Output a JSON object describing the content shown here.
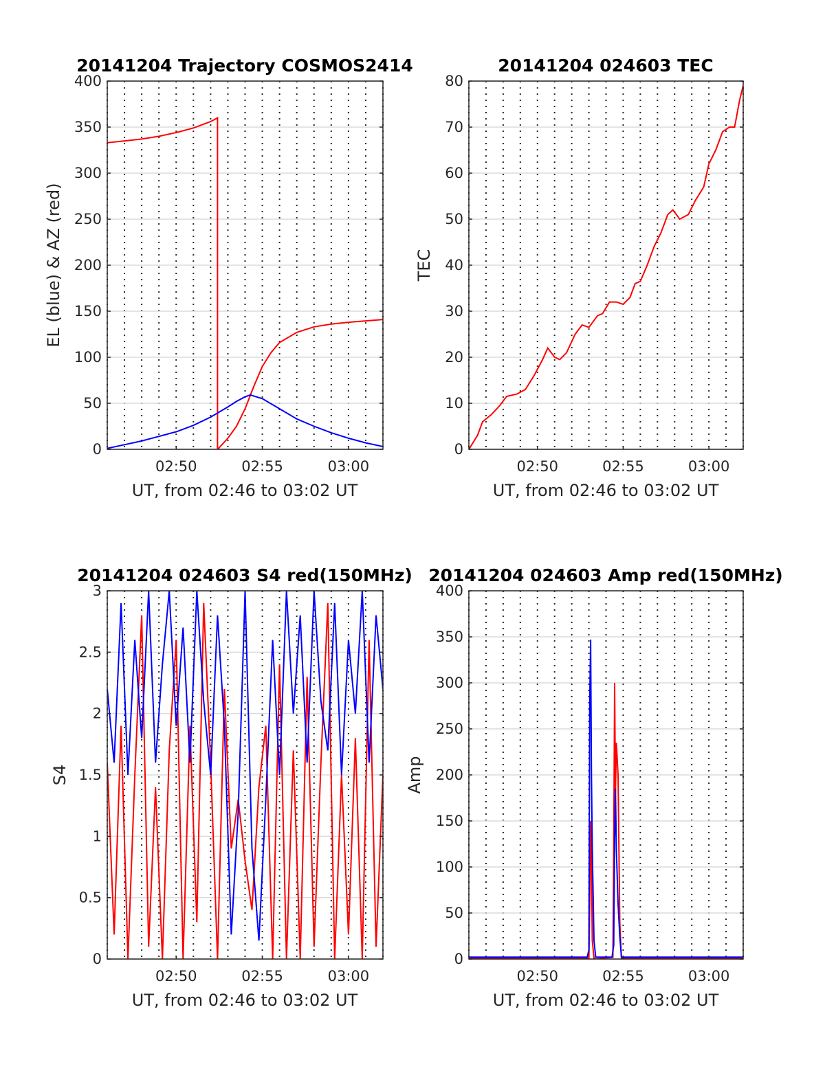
{
  "chart_data": [
    {
      "id": "trajectory",
      "type": "line",
      "title": "20141204 Trajectory COSMOS2414",
      "xlabel": "UT, from 02:46 to 03:02 UT",
      "ylabel": "EL (blue) & AZ (red)",
      "xlim": [
        166,
        182
      ],
      "ylim": [
        0,
        400
      ],
      "xticks": [
        {
          "v": 170,
          "label": "02:50"
        },
        {
          "v": 175,
          "label": "02:55"
        },
        {
          "v": 180,
          "label": "03:00"
        }
      ],
      "yticks": [
        {
          "v": 0,
          "label": "0"
        },
        {
          "v": 50,
          "label": "50"
        },
        {
          "v": 100,
          "label": "100"
        },
        {
          "v": 150,
          "label": "150"
        },
        {
          "v": 200,
          "label": "200"
        },
        {
          "v": 250,
          "label": "250"
        },
        {
          "v": 300,
          "label": "300"
        },
        {
          "v": 350,
          "label": "350"
        },
        {
          "v": 400,
          "label": "400"
        }
      ],
      "grid": true,
      "series": [
        {
          "color": "#ff0000",
          "x": [
            166,
            167,
            168,
            169,
            170,
            171,
            172,
            172.4,
            172.4,
            172.41,
            173,
            173.5,
            174,
            174.5,
            175,
            175.5,
            176,
            177,
            178,
            179,
            180,
            181,
            182
          ],
          "y": [
            333,
            335,
            337,
            340,
            344,
            349,
            356,
            360,
            0,
            0,
            12,
            25,
            44,
            68,
            90,
            105,
            116,
            127,
            133,
            136,
            138,
            139.5,
            141
          ]
        },
        {
          "color": "#0000ff",
          "x": [
            166,
            167,
            168,
            169,
            170,
            171,
            172,
            173,
            173.5,
            174,
            174.3,
            175,
            176,
            177,
            178,
            179,
            180,
            181,
            182
          ],
          "y": [
            1,
            5,
            9,
            14,
            19,
            26,
            35,
            46,
            52,
            57,
            59,
            55,
            44,
            33,
            25,
            18,
            12,
            7,
            3
          ]
        }
      ]
    },
    {
      "id": "tec",
      "type": "line",
      "title": "20141204 024603 TEC",
      "xlabel": "UT, from 02:46 to 03:02 UT",
      "ylabel": "TEC",
      "xlim": [
        166,
        182
      ],
      "ylim": [
        0,
        80
      ],
      "xticks": [
        {
          "v": 170,
          "label": "02:50"
        },
        {
          "v": 175,
          "label": "02:55"
        },
        {
          "v": 180,
          "label": "03:00"
        }
      ],
      "yticks": [
        {
          "v": 0,
          "label": "0"
        },
        {
          "v": 10,
          "label": "10"
        },
        {
          "v": 20,
          "label": "20"
        },
        {
          "v": 30,
          "label": "30"
        },
        {
          "v": 40,
          "label": "40"
        },
        {
          "v": 50,
          "label": "50"
        },
        {
          "v": 60,
          "label": "60"
        },
        {
          "v": 70,
          "label": "70"
        },
        {
          "v": 80,
          "label": "80"
        }
      ],
      "grid": true,
      "series": [
        {
          "color": "#ff0000",
          "x": [
            166,
            166.5,
            166.8,
            167.3,
            167.8,
            168.2,
            168.8,
            169.3,
            169.8,
            170.3,
            170.6,
            171,
            171.3,
            171.7,
            172.2,
            172.6,
            173,
            173.5,
            173.8,
            174.2,
            174.6,
            175,
            175.4,
            175.7,
            176,
            176.4,
            176.8,
            177.2,
            177.6,
            177.9,
            178.3,
            178.8,
            179.2,
            179.7,
            180,
            180.4,
            180.8,
            181.2,
            181.5,
            181.8,
            182
          ],
          "y": [
            0,
            3,
            6,
            7.5,
            9.5,
            11.5,
            12,
            13,
            16,
            19.5,
            22,
            20,
            19.5,
            21,
            25,
            27,
            26.5,
            29,
            29.5,
            32,
            32,
            31.5,
            33,
            36,
            36.5,
            40,
            44,
            47,
            51,
            52,
            50,
            51,
            54,
            57,
            62,
            65,
            69,
            70,
            70,
            76,
            79
          ]
        }
      ]
    },
    {
      "id": "s4",
      "type": "line",
      "title": "20141204 024603 S4 red(150MHz)",
      "xlabel": "UT, from 02:46 to 03:02 UT",
      "ylabel": "S4",
      "xlim": [
        166,
        182
      ],
      "ylim": [
        0,
        3
      ],
      "xticks": [
        {
          "v": 170,
          "label": "02:50"
        },
        {
          "v": 175,
          "label": "02:55"
        },
        {
          "v": 180,
          "label": "03:00"
        }
      ],
      "yticks": [
        {
          "v": 0,
          "label": "0"
        },
        {
          "v": 0.5,
          "label": "0.5"
        },
        {
          "v": 1,
          "label": "1"
        },
        {
          "v": 1.5,
          "label": "1.5"
        },
        {
          "v": 2,
          "label": "2"
        },
        {
          "v": 2.5,
          "label": "2.5"
        },
        {
          "v": 3,
          "label": "3"
        }
      ],
      "grid": true,
      "series": [
        {
          "color": "#ff0000",
          "x": [
            166,
            166.4,
            166.8,
            167.2,
            167.6,
            168,
            168.4,
            168.8,
            169.2,
            169.6,
            170,
            170.4,
            170.8,
            171.2,
            171.6,
            172,
            172.4,
            172.8,
            173.2,
            173.6,
            174,
            174.4,
            174.8,
            175.2,
            175.6,
            176,
            176.4,
            176.8,
            177.2,
            177.6,
            178,
            178.4,
            178.8,
            179.2,
            179.6,
            180,
            180.4,
            180.8,
            181.2,
            181.6,
            182
          ],
          "y": [
            1.6,
            0.2,
            1.9,
            0,
            1.5,
            2.8,
            0.1,
            1.4,
            0,
            1.7,
            2.6,
            0,
            1.9,
            0.3,
            2.9,
            1.6,
            0,
            2.2,
            0.9,
            1.3,
            0.8,
            0.4,
            1.4,
            1.9,
            0,
            2.4,
            0,
            1.7,
            0,
            2.3,
            0.1,
            1.6,
            2.9,
            0,
            1.5,
            0.2,
            1.8,
            0,
            2.6,
            0.1,
            1.5
          ]
        },
        {
          "color": "#0000ff",
          "x": [
            166,
            166.4,
            166.8,
            167.2,
            167.6,
            168,
            168.4,
            168.8,
            169.2,
            169.6,
            170,
            170.4,
            170.8,
            171.2,
            171.6,
            172,
            172.4,
            172.8,
            173.2,
            173.6,
            174,
            174.4,
            174.8,
            175.2,
            175.6,
            176,
            176.4,
            176.8,
            177.2,
            177.6,
            178,
            178.4,
            178.8,
            179.2,
            179.6,
            180,
            180.4,
            180.8,
            181.2,
            181.6,
            182
          ],
          "y": [
            2.2,
            1.6,
            2.9,
            1.5,
            2.6,
            1.8,
            3,
            1.6,
            2.4,
            3,
            1.9,
            2.7,
            1.6,
            3,
            2.1,
            1.5,
            2.8,
            1.9,
            0.2,
            1.2,
            3,
            0.9,
            0.15,
            1.3,
            2.6,
            1.5,
            3,
            2,
            2.8,
            1.6,
            3,
            2.1,
            1.7,
            2.9,
            1.5,
            2.6,
            2,
            3,
            1.6,
            2.8,
            2.2
          ]
        }
      ]
    },
    {
      "id": "amp",
      "type": "line",
      "title": "20141204 024603 Amp red(150MHz)",
      "xlabel": "UT, from 02:46 to 03:02 UT",
      "ylabel": "Amp",
      "xlim": [
        166,
        182
      ],
      "ylim": [
        0,
        400
      ],
      "xticks": [
        {
          "v": 170,
          "label": "02:50"
        },
        {
          "v": 175,
          "label": "02:55"
        },
        {
          "v": 180,
          "label": "03:00"
        }
      ],
      "yticks": [
        {
          "v": 0,
          "label": "0"
        },
        {
          "v": 50,
          "label": "50"
        },
        {
          "v": 100,
          "label": "100"
        },
        {
          "v": 150,
          "label": "150"
        },
        {
          "v": 200,
          "label": "200"
        },
        {
          "v": 250,
          "label": "250"
        },
        {
          "v": 300,
          "label": "300"
        },
        {
          "v": 350,
          "label": "350"
        },
        {
          "v": 400,
          "label": "400"
        }
      ],
      "grid": true,
      "series": [
        {
          "color": "#ff0000",
          "x": [
            166,
            173,
            173.05,
            173.1,
            173.15,
            173.2,
            173.3,
            173.4,
            174.4,
            174.45,
            174.5,
            174.55,
            174.6,
            174.7,
            174.8,
            174.9,
            182
          ],
          "y": [
            1,
            1,
            60,
            150,
            110,
            20,
            1,
            0,
            2,
            120,
            300,
            180,
            235,
            200,
            40,
            1,
            1
          ]
        },
        {
          "color": "#0000ff",
          "x": [
            166,
            172.9,
            173,
            173.05,
            173.1,
            173.15,
            173.2,
            173.3,
            173.4,
            174.35,
            174.45,
            174.5,
            174.55,
            174.6,
            174.7,
            174.8,
            174.9,
            182
          ],
          "y": [
            2,
            2,
            10,
            280,
            347,
            200,
            120,
            20,
            2,
            2,
            15,
            130,
            185,
            120,
            60,
            25,
            2,
            2
          ]
        }
      ]
    }
  ]
}
